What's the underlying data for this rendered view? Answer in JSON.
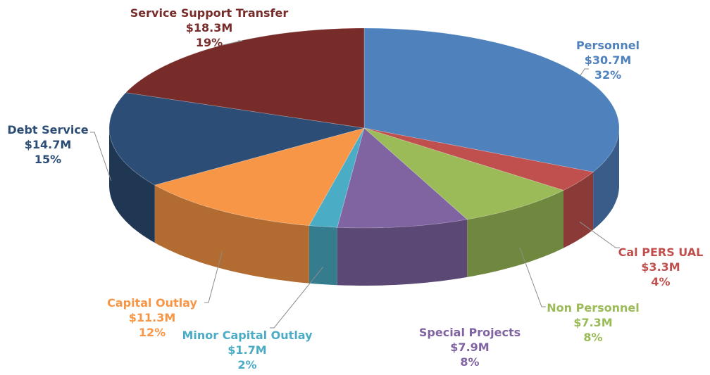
{
  "chart_data": {
    "type": "pie",
    "style": "3d",
    "title": "",
    "slices": [
      {
        "label": "Personnel",
        "amount": "$30.7M",
        "percent": "32%",
        "value": 30.7,
        "color": "#4F81BD"
      },
      {
        "label": "Cal PERS UAL",
        "amount": "$3.3M",
        "percent": "4%",
        "value": 3.3,
        "color": "#C0504D"
      },
      {
        "label": "Non Personnel",
        "amount": "$7.3M",
        "percent": "8%",
        "value": 7.3,
        "color": "#9BBB59"
      },
      {
        "label": "Special Projects",
        "amount": "$7.9M",
        "percent": "8%",
        "value": 7.9,
        "color": "#8064A2"
      },
      {
        "label": "Minor Capital Outlay",
        "amount": "$1.7M",
        "percent": "2%",
        "value": 1.7,
        "color": "#4BACC6"
      },
      {
        "label": "Capital Outlay",
        "amount": "$11.3M",
        "percent": "12%",
        "value": 11.3,
        "color": "#F79646"
      },
      {
        "label": "Debt Service",
        "amount": "$14.7M",
        "percent": "15%",
        "value": 14.7,
        "color": "#2C4D75"
      },
      {
        "label": "Service Support Transfer",
        "amount": "$18.3M",
        "percent": "19%",
        "value": 18.3,
        "color": "#772C2A"
      }
    ]
  }
}
